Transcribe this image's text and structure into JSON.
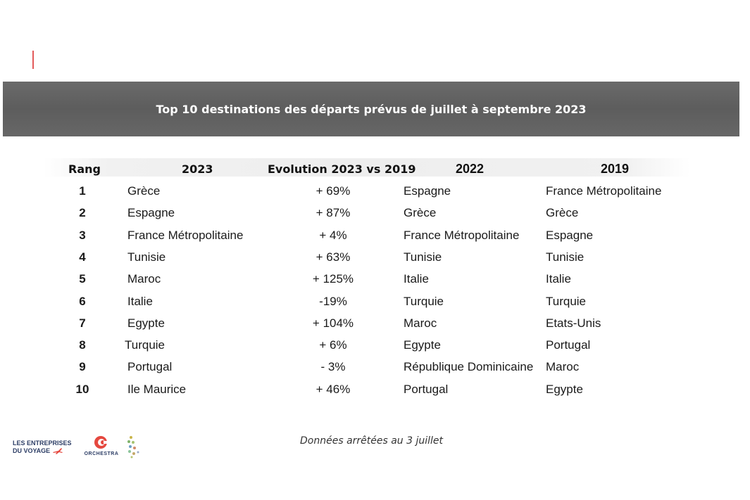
{
  "title": "Top 10 destinations des départs prévus de juillet à septembre 2023",
  "columns": {
    "rang": "Rang",
    "y2023": "2023",
    "evolution": "Evolution 2023 vs 2019",
    "y2022": "2022",
    "y2019": "2019"
  },
  "rows": [
    {
      "rang": "1",
      "d2023": "Grèce",
      "evo": "+ 69%",
      "d2022": "Espagne",
      "d2019": "France Métropolitaine"
    },
    {
      "rang": "2",
      "d2023": "Espagne",
      "evo": "+ 87%",
      "d2022": "Grèce",
      "d2019": "Grèce"
    },
    {
      "rang": "3",
      "d2023": "France Métropolitaine",
      "evo": "+ 4%",
      "d2022": "France Métropolitaine",
      "d2019": "Espagne"
    },
    {
      "rang": "4",
      "d2023": "Tunisie",
      "evo": "+ 63%",
      "d2022": "Tunisie",
      "d2019": "Tunisie"
    },
    {
      "rang": "5",
      "d2023": "Maroc",
      "evo": "+ 125%",
      "d2022": "Italie",
      "d2019": "Italie"
    },
    {
      "rang": "6",
      "d2023": "Italie",
      "evo": "-19%",
      "d2022": "Turquie",
      "d2019": "Turquie"
    },
    {
      "rang": "7",
      "d2023": "Egypte",
      "evo": "+ 104%",
      "d2022": "Maroc",
      "d2019": "Etats-Unis"
    },
    {
      "rang": "8",
      "d2023": "Turquie",
      "evo": "+ 6%",
      "d2022": "Egypte",
      "d2019": "Portugal"
    },
    {
      "rang": "9",
      "d2023": "Portugal",
      "evo": "- 3%",
      "d2022": "République Dominicaine",
      "d2019": "Maroc"
    },
    {
      "rang": "10",
      "d2023": "Ile Maurice",
      "evo": "+ 46%",
      "d2022": "Portugal",
      "d2019": "Egypte"
    }
  ],
  "footer": {
    "note": "Données arrêtées au 3 juillet",
    "logo_lev_line1": "LES ENTREPRISES",
    "logo_lev_line2": "DU VOYAGE",
    "logo_orchestra": "ORCHESTRA"
  },
  "colors": {
    "banner": "#626262",
    "accent_red": "#e35a5a",
    "logo_blue": "#2d3e66",
    "logo_red": "#e5483f"
  }
}
